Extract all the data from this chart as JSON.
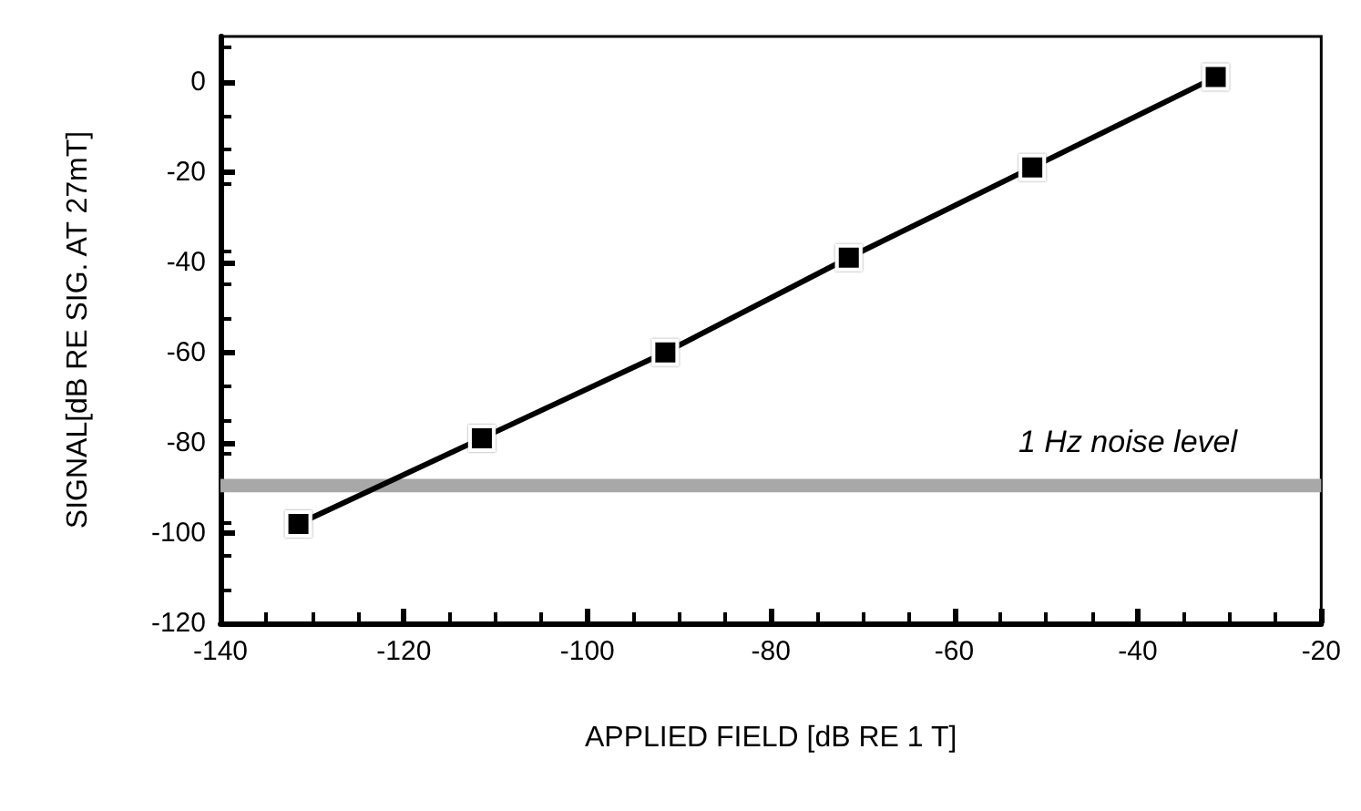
{
  "chart_data": {
    "type": "line",
    "xlabel": "APPLIED FIELD [dB RE 1 T]",
    "ylabel": "SIGNAL[dB RE SIG. AT 27mT]",
    "x": [
      -131.5,
      -111.5,
      -91.5,
      -71.5,
      -51.5,
      -31.5
    ],
    "series": [
      {
        "color": "#000000",
        "values": [
          -98,
          -79,
          -60,
          -39,
          -19,
          1
        ]
      }
    ],
    "xlim": [
      -140,
      -20
    ],
    "xticks": [
      -140,
      -120,
      -100,
      -80,
      -60,
      -40,
      -20
    ],
    "ylim": [
      -120,
      10
    ],
    "yticks": [
      -120,
      -100,
      -80,
      -60,
      -40,
      -20,
      0
    ],
    "bands": [
      {
        "axis": "y",
        "from": -91,
        "to": -88,
        "color": "#a8a8a8"
      }
    ],
    "annotations": [
      "1 Hz noise level"
    ],
    "marker": "square",
    "line_style": "solid",
    "grid": false
  }
}
